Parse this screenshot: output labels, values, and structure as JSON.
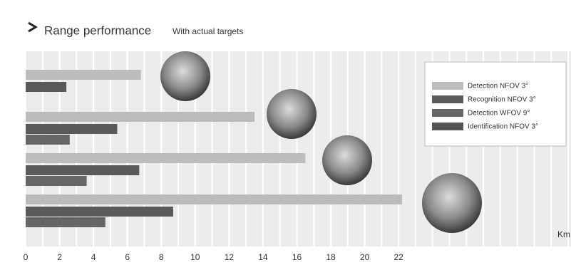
{
  "chart_data": {
    "type": "bar",
    "orientation": "horizontal",
    "title": "Range performance",
    "subtitle": "With actual targets",
    "x_unit": "Km",
    "categories": [
      null,
      null,
      null,
      null
    ],
    "series": [
      {
        "name": "Detection NFOV 3°",
        "color": "#bcbcbc",
        "values": [
          6.8,
          13.5,
          16.5,
          22.2
        ]
      },
      {
        "name": "Recognition NFOV 3°",
        "color": "#5a5a5a",
        "values": [
          2.4,
          5.4,
          6.7,
          8.7
        ]
      },
      {
        "name": "Detection WFOV 9°",
        "color": "#666666",
        "values": [
          null,
          2.6,
          3.6,
          4.7
        ]
      },
      {
        "name": "Identification NFOV 3°",
        "color": "#555555",
        "values": [
          null,
          null,
          null,
          null
        ]
      }
    ],
    "xlim": [
      0,
      32
    ],
    "xticks": [
      0,
      2,
      4,
      6,
      8,
      10,
      12,
      14,
      16,
      18,
      20,
      22
    ],
    "minor_grid_step": 1,
    "grid": true,
    "legend": "upper right"
  }
}
